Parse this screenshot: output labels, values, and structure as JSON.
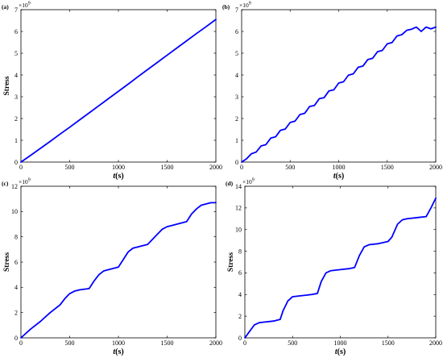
{
  "chart_data": [
    {
      "type": "line",
      "panel_label": "(a)",
      "exponent": "×10",
      "exponent_power": "9",
      "ylabel": "Stress",
      "xlabel": "t",
      "xlabel_unit": "(s)",
      "xlim": [
        0,
        2000
      ],
      "ylim": [
        0,
        7
      ],
      "xticks": [
        0,
        500,
        1000,
        1500,
        2000
      ],
      "yticks": [
        0,
        1,
        2,
        3,
        4,
        5,
        6,
        7
      ],
      "color": "#0000ff",
      "series": [
        {
          "x": [
            0,
            100,
            200,
            300,
            400,
            500,
            600,
            700,
            800,
            900,
            1000,
            1100,
            1200,
            1300,
            1400,
            1500,
            1600,
            1700,
            1800,
            1900,
            2000
          ],
          "values": [
            0,
            0.31,
            0.63,
            0.95,
            1.28,
            1.6,
            1.93,
            2.26,
            2.59,
            2.92,
            3.25,
            3.58,
            3.92,
            4.25,
            4.58,
            4.91,
            5.24,
            5.57,
            5.9,
            6.22,
            6.55
          ]
        }
      ]
    },
    {
      "type": "line",
      "panel_label": "(b)",
      "exponent": "×10",
      "exponent_power": "9",
      "ylabel": "",
      "xlabel": "t",
      "xlabel_unit": "(s)",
      "xlim": [
        0,
        2000
      ],
      "ylim": [
        0,
        7
      ],
      "xticks": [
        0,
        500,
        1000,
        1500,
        2000
      ],
      "yticks": [
        0,
        1,
        2,
        3,
        4,
        5,
        6,
        7
      ],
      "color": "#0000ff",
      "series": [
        {
          "x": [
            0,
            50,
            100,
            150,
            200,
            250,
            300,
            350,
            400,
            450,
            500,
            550,
            600,
            650,
            700,
            750,
            800,
            850,
            900,
            950,
            1000,
            1050,
            1100,
            1150,
            1200,
            1250,
            1300,
            1350,
            1400,
            1450,
            1500,
            1550,
            1600,
            1650,
            1700,
            1750,
            1800,
            1850,
            1900,
            1950,
            2000
          ],
          "values": [
            0,
            0.15,
            0.38,
            0.46,
            0.74,
            0.8,
            1.1,
            1.16,
            1.46,
            1.52,
            1.82,
            1.88,
            2.18,
            2.24,
            2.55,
            2.6,
            2.91,
            2.96,
            3.27,
            3.32,
            3.63,
            3.69,
            3.99,
            4.05,
            4.35,
            4.41,
            4.71,
            4.77,
            5.07,
            5.13,
            5.43,
            5.49,
            5.79,
            5.85,
            6.05,
            6.1,
            6.2,
            6.0,
            6.2,
            6.12,
            6.2
          ]
        }
      ]
    },
    {
      "type": "line",
      "panel_label": "(c)",
      "exponent": "×10",
      "exponent_power": "9",
      "ylabel": "Stress",
      "xlabel": "t",
      "xlabel_unit": "(s)",
      "xlim": [
        0,
        2000
      ],
      "ylim": [
        0,
        12
      ],
      "xticks": [
        0,
        500,
        1000,
        1500,
        2000
      ],
      "yticks": [
        0,
        2,
        4,
        6,
        8,
        10,
        12
      ],
      "color": "#0000ff",
      "series": [
        {
          "x": [
            0,
            100,
            200,
            300,
            400,
            450,
            500,
            550,
            600,
            700,
            750,
            800,
            850,
            900,
            1000,
            1050,
            1100,
            1150,
            1200,
            1300,
            1400,
            1450,
            1500,
            1550,
            1600,
            1700,
            1750,
            1800,
            1850,
            1900,
            1950,
            2000
          ],
          "values": [
            0,
            0.7,
            1.3,
            2.0,
            2.6,
            3.1,
            3.5,
            3.7,
            3.8,
            3.9,
            4.5,
            5.0,
            5.3,
            5.4,
            5.6,
            6.2,
            6.8,
            7.1,
            7.2,
            7.4,
            8.2,
            8.6,
            8.8,
            8.9,
            9.0,
            9.2,
            9.8,
            10.2,
            10.5,
            10.6,
            10.7,
            10.7
          ]
        }
      ]
    },
    {
      "type": "line",
      "panel_label": "(d)",
      "exponent": "×10",
      "exponent_power": "9",
      "ylabel": "Stress",
      "xlabel": "t",
      "xlabel_unit": "(s)",
      "xlim": [
        0,
        2000
      ],
      "ylim": [
        0,
        14
      ],
      "xticks": [
        0,
        500,
        1000,
        1500,
        2000
      ],
      "yticks": [
        0,
        2,
        4,
        6,
        8,
        10,
        12,
        14
      ],
      "color": "#0000ff",
      "series": [
        {
          "x": [
            0,
            50,
            100,
            150,
            200,
            300,
            370,
            400,
            450,
            500,
            600,
            700,
            760,
            800,
            850,
            900,
            1000,
            1100,
            1150,
            1200,
            1250,
            1300,
            1400,
            1500,
            1540,
            1600,
            1650,
            1700,
            1800,
            1900,
            1950,
            2000
          ],
          "values": [
            0,
            0.6,
            1.2,
            1.4,
            1.45,
            1.55,
            1.7,
            2.5,
            3.4,
            3.8,
            3.9,
            4.0,
            4.1,
            5.2,
            6.0,
            6.2,
            6.3,
            6.4,
            6.5,
            7.6,
            8.4,
            8.6,
            8.7,
            8.9,
            9.3,
            10.5,
            10.9,
            11.0,
            11.1,
            11.2,
            12.0,
            12.9
          ]
        }
      ]
    }
  ]
}
